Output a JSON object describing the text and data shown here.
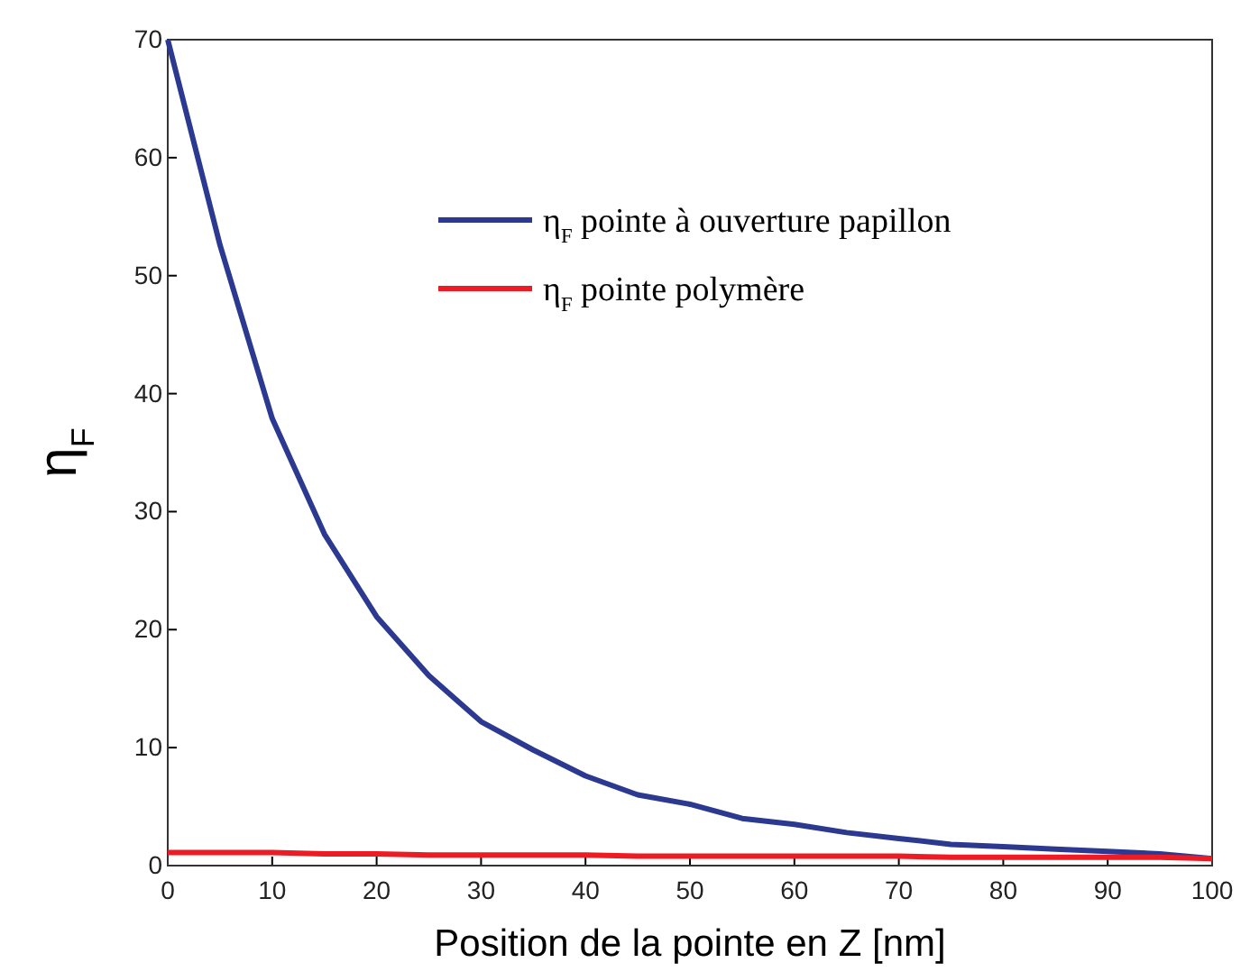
{
  "chart_data": {
    "type": "line",
    "xlabel": "Position de la pointe en Z [nm]",
    "ylabel": "η$_{F}$",
    "x": [
      0,
      5,
      10,
      15,
      20,
      25,
      30,
      35,
      40,
      45,
      50,
      55,
      60,
      65,
      70,
      75,
      80,
      85,
      90,
      95,
      100
    ],
    "series": [
      {
        "name": "η$_{F}$ pointe à ouverture papillon",
        "color": "#2b3990",
        "values": [
          70,
          52.6,
          37.9,
          28.1,
          21.1,
          16.1,
          12.2,
          9.8,
          7.6,
          6.0,
          5.2,
          4.0,
          3.5,
          2.8,
          2.3,
          1.8,
          1.6,
          1.4,
          1.2,
          1.0,
          0.6
        ]
      },
      {
        "name": "η$_{F}$ pointe polymère",
        "color": "#ed1c24",
        "values": [
          1.1,
          1.1,
          1.1,
          1.0,
          1.0,
          0.9,
          0.9,
          0.9,
          0.9,
          0.8,
          0.8,
          0.8,
          0.8,
          0.8,
          0.8,
          0.7,
          0.7,
          0.7,
          0.7,
          0.7,
          0.6
        ]
      }
    ],
    "xlim": [
      0,
      100
    ],
    "xticks": [
      0,
      10,
      20,
      30,
      40,
      50,
      60,
      70,
      80,
      90,
      100
    ],
    "ylim": [
      0,
      70
    ],
    "yticks": [
      0,
      10,
      20,
      30,
      40,
      50,
      60,
      70
    ],
    "legend": "top right",
    "grid": false,
    "marker": "none",
    "line_style": "solid"
  }
}
